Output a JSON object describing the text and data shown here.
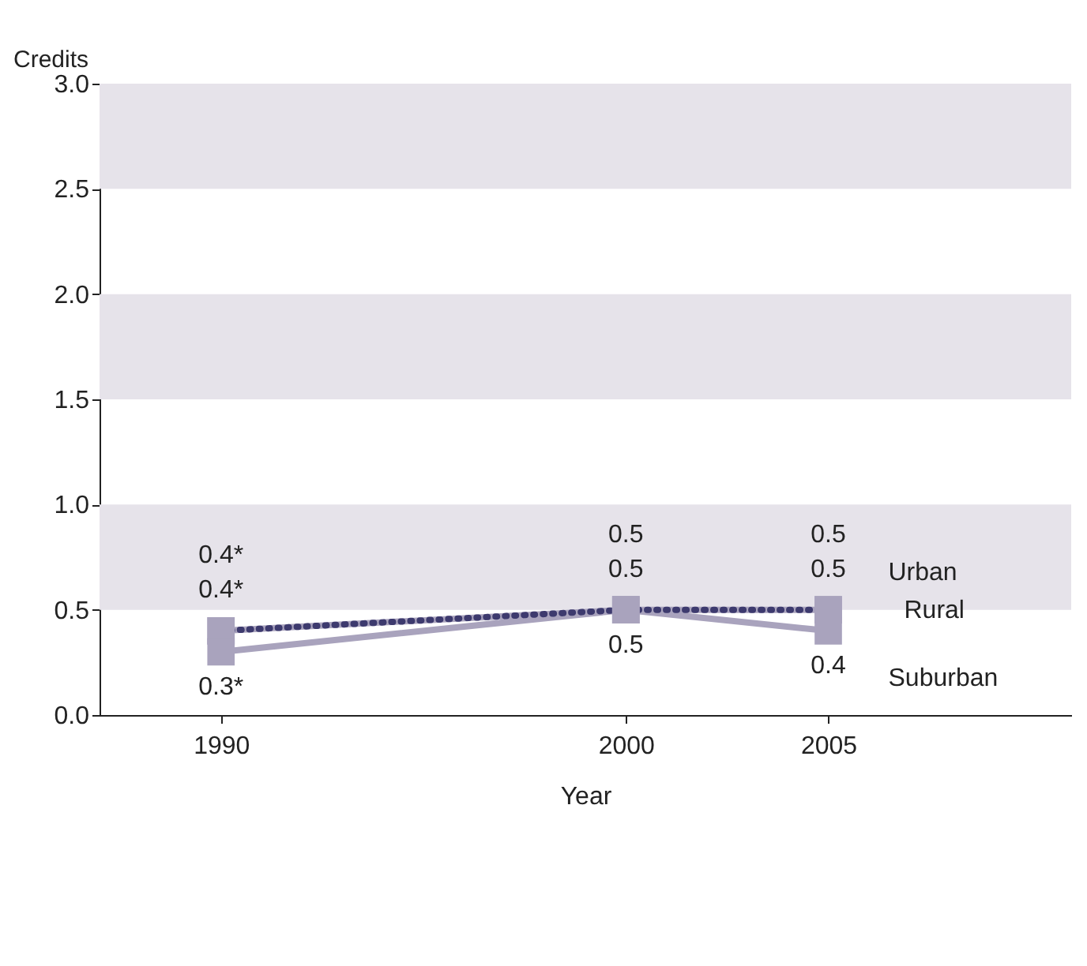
{
  "chart_data": {
    "type": "line",
    "x": [
      1990,
      2000,
      2005
    ],
    "xlim": [
      1987,
      2011
    ],
    "xticks": [
      1990,
      2000,
      2005
    ],
    "ylim": [
      0,
      3
    ],
    "yticks": [
      {
        "value": 0,
        "label": "0.0"
      },
      {
        "value": 0.5,
        "label": "0.5"
      },
      {
        "value": 1,
        "label": "1.0"
      },
      {
        "value": 1.5,
        "label": "1.5"
      },
      {
        "value": 2,
        "label": "2.0"
      },
      {
        "value": 2.5,
        "label": "2.5"
      },
      {
        "value": 3,
        "label": "3.0"
      }
    ],
    "xlabel": "Year",
    "ylabel": "Credits",
    "marker": "square",
    "legend": false,
    "grid": false,
    "bands": [
      {
        "axis": "y",
        "from": 0.5,
        "to": 1,
        "color": "#e6e3ea"
      },
      {
        "axis": "y",
        "from": 1.5,
        "to": 2,
        "color": "#e6e3ea"
      },
      {
        "axis": "y",
        "from": 2.5,
        "to": 3,
        "color": "#e6e3ea"
      }
    ],
    "series": [
      {
        "name": "Urban",
        "color": "#3d3a6e",
        "line_style": "dotted",
        "values": [
          0.4,
          0.5,
          0.5
        ],
        "value_labels": [
          "0.4*",
          "0.5",
          "0.5"
        ]
      },
      {
        "name": "Rural",
        "color": "#a9a3bd",
        "line_style": "solid",
        "values": [
          0.4,
          0.5,
          0.5
        ],
        "value_labels": [
          "0.4*",
          "0.5",
          "0.5"
        ]
      },
      {
        "name": "Suburban",
        "color": "#a9a3bd",
        "line_style": "solid",
        "values": [
          0.3,
          0.5,
          0.4
        ],
        "value_labels": [
          "0.3*",
          "0.5",
          "0.4"
        ]
      }
    ]
  }
}
